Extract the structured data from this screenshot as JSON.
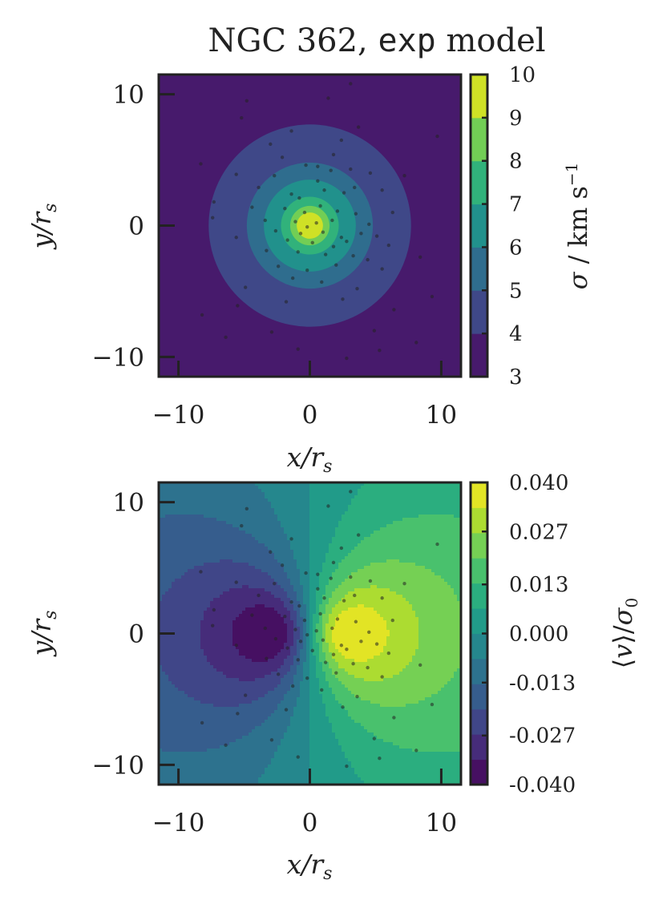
{
  "title": {
    "prefix": "NGC 362, ",
    "code": "exp",
    "suffix": " model"
  },
  "chart_data": [
    {
      "type": "heatmap",
      "panel": "top",
      "quantity": "sigma",
      "xlabel": "x/r_s",
      "ylabel": "y/r_s",
      "xlim": [
        -11.5,
        11.5
      ],
      "ylim": [
        -11.5,
        11.5
      ],
      "xticks": [
        -10,
        0,
        10
      ],
      "yticks": [
        -10,
        0,
        10
      ],
      "xtick_labels": [
        "−10",
        "0",
        "10"
      ],
      "ytick_labels": [
        "−10",
        "0",
        "10"
      ],
      "colorbar": {
        "label": "σ / km s⁻¹",
        "levels": [
          3,
          4,
          5,
          6,
          7,
          8,
          9,
          10
        ],
        "tick_labels": [
          "3",
          "4",
          "5",
          "6",
          "7",
          "8",
          "9",
          "10"
        ],
        "range": [
          3,
          10
        ]
      },
      "center": [
        0.0,
        0.0
      ],
      "contour_radii_by_level": [
        {
          "level": 4,
          "radius": 7.7
        },
        {
          "level": 5,
          "radius": 4.8
        },
        {
          "level": 6,
          "radius": 3.5
        },
        {
          "level": 7,
          "radius": 2.2
        },
        {
          "level": 8,
          "radius": 1.5
        },
        {
          "level": 9,
          "radius": 1.0
        }
      ],
      "background_level": 3,
      "grid": false
    },
    {
      "type": "heatmap",
      "panel": "bottom",
      "quantity": "mean_velocity",
      "xlabel": "x/r_s",
      "ylabel": "y/r_s",
      "xlim": [
        -11.5,
        11.5
      ],
      "ylim": [
        -11.5,
        11.5
      ],
      "xticks": [
        -10,
        0,
        10
      ],
      "yticks": [
        -10,
        0,
        10
      ],
      "xtick_labels": [
        "−10",
        "0",
        "10"
      ],
      "ytick_labels": [
        "−10",
        "0",
        "10"
      ],
      "colorbar": {
        "label": "⟨v⟩/σ₀",
        "range": [
          -0.04,
          0.04
        ],
        "tick_values": [
          -0.04,
          -0.027,
          -0.013,
          0.0,
          0.013,
          0.027,
          0.04
        ],
        "tick_labels": [
          "-0.040",
          "-0.027",
          "-0.013",
          "0.000",
          "0.013",
          "0.027",
          "0.040"
        ],
        "n_bands": 12
      },
      "extremum_centers": [
        {
          "x": 3.2,
          "y": 0.0,
          "value": 0.04
        },
        {
          "x": -3.2,
          "y": 0.0,
          "value": -0.04
        }
      ],
      "grid": false
    }
  ],
  "stars": [
    [
      3.1,
      10.8
    ],
    [
      1.4,
      9.7
    ],
    [
      -4.8,
      9.5
    ],
    [
      -5.2,
      8.2
    ],
    [
      -8.3,
      4.7
    ],
    [
      -5.6,
      3.9
    ],
    [
      -2.7,
      3.8
    ],
    [
      -0.3,
      4.6
    ],
    [
      0.6,
      4.5
    ],
    [
      1.6,
      4.2
    ],
    [
      3.1,
      4.3
    ],
    [
      4.6,
      4.0
    ],
    [
      7.2,
      3.8
    ],
    [
      -3.9,
      2.9
    ],
    [
      -1.4,
      2.4
    ],
    [
      -7.3,
      1.8
    ],
    [
      -0.8,
      2.1
    ],
    [
      1.1,
      2.7
    ],
    [
      2.6,
      2.5
    ],
    [
      3.4,
      2.9
    ],
    [
      5.5,
      2.7
    ],
    [
      -4.4,
      1.4
    ],
    [
      -1.9,
      1.3
    ],
    [
      -0.4,
      1.0
    ],
    [
      0.8,
      1.5
    ],
    [
      2.1,
      1.1
    ],
    [
      3.5,
      0.9
    ],
    [
      6.3,
      1.0
    ],
    [
      -7.4,
      0.6
    ],
    [
      -3.4,
      0.4
    ],
    [
      -1.1,
      0.3
    ],
    [
      0.5,
      0.2
    ],
    [
      1.7,
      0.4
    ],
    [
      4.5,
      0.1
    ],
    [
      -2.6,
      -0.4
    ],
    [
      -0.7,
      -0.6
    ],
    [
      1.0,
      -0.5
    ],
    [
      2.4,
      -0.9
    ],
    [
      3.9,
      -0.6
    ],
    [
      5.1,
      -0.8
    ],
    [
      -5.6,
      -0.9
    ],
    [
      -1.7,
      -1.1
    ],
    [
      0.2,
      -1.3
    ],
    [
      1.8,
      -1.6
    ],
    [
      2.8,
      -1.2
    ],
    [
      6.0,
      -1.5
    ],
    [
      8.4,
      -2.4
    ],
    [
      -3.3,
      -1.9
    ],
    [
      -0.9,
      -2.0
    ],
    [
      1.2,
      -2.2
    ],
    [
      3.3,
      -2.3
    ],
    [
      4.4,
      -2.6
    ],
    [
      -2.4,
      -3.1
    ],
    [
      -0.2,
      -3.4
    ],
    [
      2.0,
      -3.0
    ],
    [
      5.5,
      -3.3
    ],
    [
      -1.3,
      -4.0
    ],
    [
      0.9,
      -4.3
    ],
    [
      3.6,
      -4.8
    ],
    [
      -4.9,
      -4.7
    ],
    [
      -5.5,
      -6.1
    ],
    [
      -1.8,
      -5.8
    ],
    [
      2.5,
      -5.6
    ],
    [
      6.4,
      -6.4
    ],
    [
      9.3,
      -5.4
    ],
    [
      -8.2,
      -6.8
    ],
    [
      -6.4,
      -8.5
    ],
    [
      -2.9,
      -8.1
    ],
    [
      -0.9,
      -9.4
    ],
    [
      2.8,
      -10.1
    ],
    [
      4.9,
      -8.0
    ],
    [
      5.3,
      -9.5
    ],
    [
      8.1,
      -8.9
    ],
    [
      -3.0,
      6.2
    ],
    [
      2.4,
      6.5
    ],
    [
      3.7,
      7.5
    ],
    [
      -1.4,
      7.2
    ],
    [
      9.7,
      6.8
    ],
    [
      1.8,
      5.4
    ],
    [
      -2.1,
      5.2
    ],
    [
      0.6,
      3.4
    ],
    [
      -0.2,
      -0.1
    ]
  ],
  "colors": {
    "viridis": [
      "#440154",
      "#482475",
      "#414487",
      "#355f8d",
      "#2a788e",
      "#21918c",
      "#22a884",
      "#44bf70",
      "#7ad151",
      "#bddf26",
      "#fde725"
    ]
  }
}
